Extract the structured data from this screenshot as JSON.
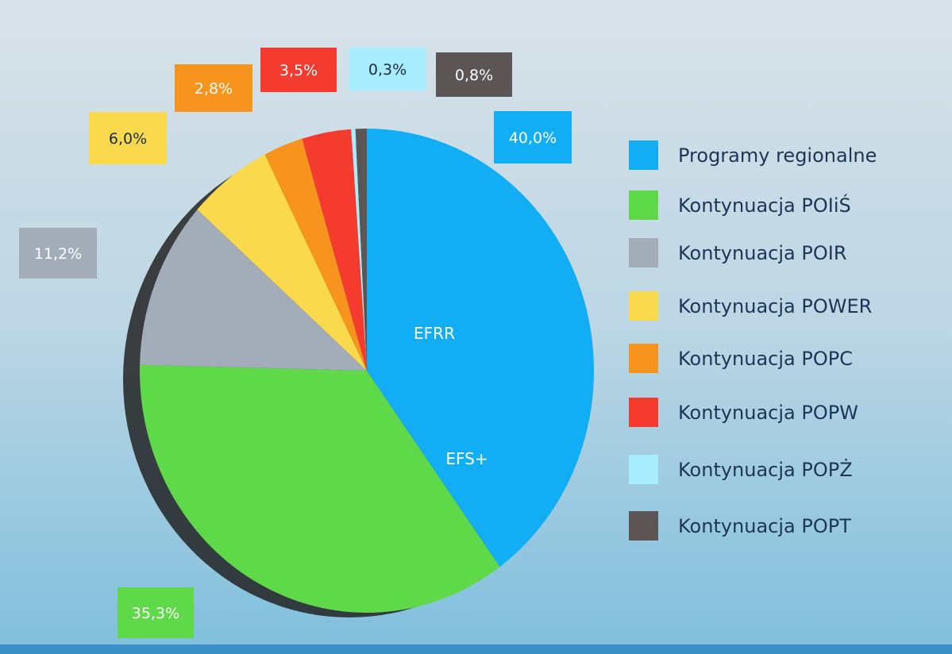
{
  "chart_data": {
    "type": "pie",
    "categories": [
      "Programy regionalne",
      "Kontynuacja POIiŚ",
      "Kontynuacja POIR",
      "Kontynuacja POWER",
      "Kontynuacja POPC",
      "Kontynuacja POPW",
      "Kontynuacja POPŻ",
      "Kontynuacja POPT"
    ],
    "values": [
      40.0,
      35.3,
      11.2,
      6.0,
      2.8,
      3.5,
      0.3,
      0.8
    ],
    "value_labels": [
      "40,0%",
      "35,3%",
      "11,2%",
      "6,0%",
      "2,8%",
      "3,5%",
      "0,3%",
      "0,8%"
    ],
    "colors": [
      "#12aef5",
      "#5fd94a",
      "#a3adba",
      "#fbd94c",
      "#f7941d",
      "#f53b2f",
      "#a8ecff",
      "#5b5555"
    ],
    "annotations": [
      "EFRR",
      "EFS+"
    ],
    "legend": true
  }
}
